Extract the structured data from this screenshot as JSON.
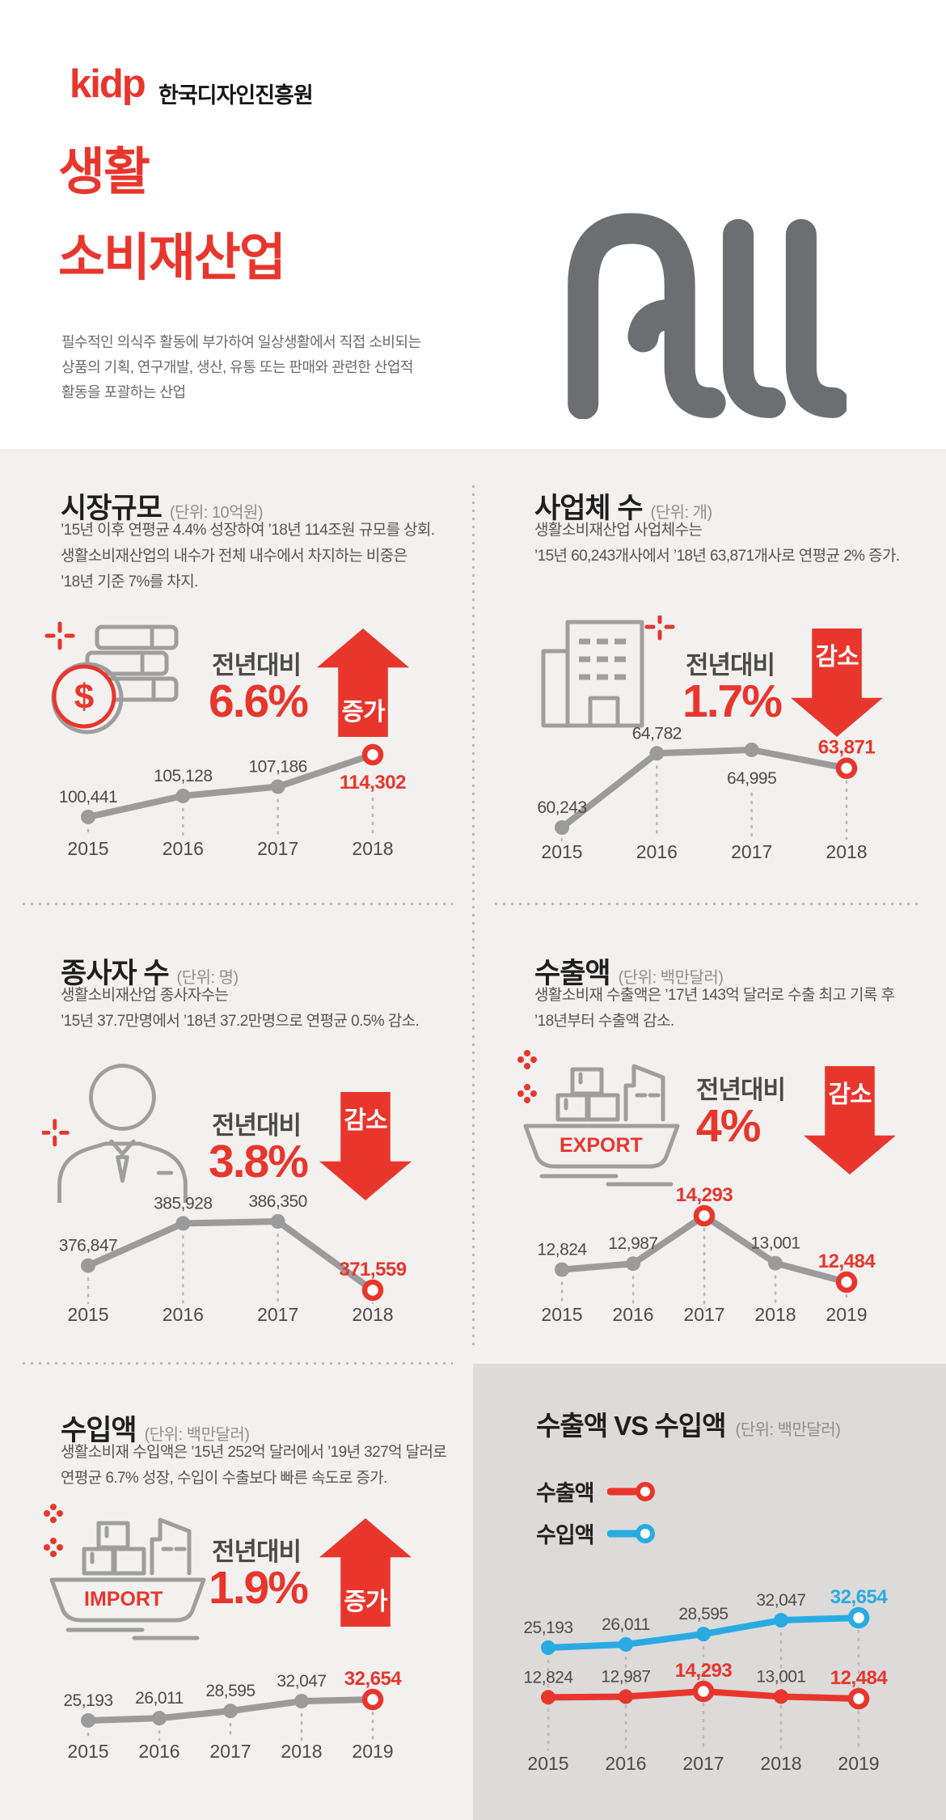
{
  "header": {
    "logo": "kidp",
    "org": "한국디자인진흥원",
    "title": "생활\n소비재산업",
    "description": "필수적인 의식주 활동에 부가하여 일상생활에서 직접 소비되는\n상품의 기획, 연구개발, 생산, 유통 또는 판매와 관련한 산업적\n활동을 포괄하는 산업",
    "big_word": "All"
  },
  "colors": {
    "red": "#e8362d",
    "blue": "#29abe2",
    "gray_line": "#9b9b9b",
    "background": "#f2f1f0",
    "panel_gray": "#dcdbda"
  },
  "icons": {
    "dollar_sign": "$"
  },
  "sections": {
    "market": {
      "title": "시장규모",
      "unit": "(단위: 10억원)",
      "body": "’15년 이후 연평균 4.4% 성장하여 ’18년 114조원 규모를 상회.\n생활소비재산업의 내수가 전체 내수에서 차지하는 비중은\n’18년 기준 7%를 차지.",
      "compare_label": "전년대비",
      "percent": "6.6%",
      "direction_label": "증가"
    },
    "business": {
      "title": "사업체 수",
      "unit": "(단위: 개)",
      "body": "생활소비재산업 사업체수는\n’15년 60,243개사에서 ’18년 63,871개사로 연평균 2% 증가.",
      "compare_label": "전년대비",
      "percent": "1.7%",
      "direction_label": "감소"
    },
    "workers": {
      "title": "종사자 수",
      "unit": "(단위: 명)",
      "body": "생활소비재산업 종사자수는\n’15년 37.7만명에서 ’18년 37.2만명으로 연평균 0.5% 감소.",
      "compare_label": "전년대비",
      "percent": "3.8%",
      "direction_label": "감소"
    },
    "exports": {
      "title": "수출액",
      "unit": "(단위: 백만달러)",
      "body": "생활소비재 수출액은 ’17년 143억 달러로 수출 최고 기록 후\n’18년부터 수출액 감소.",
      "compare_label": "전년대비",
      "percent": "4%",
      "direction_label": "감소",
      "icon_label": "EXPORT"
    },
    "imports": {
      "title": "수입액",
      "unit": "(단위: 백만달러)",
      "body": "생활소비재 수입액은 ’15년 252억 달러에서 ’19년 327억 달러로\n연평균 6.7% 성장, 수입이 수출보다 빠른 속도로 증가.",
      "compare_label": "전년대비",
      "percent": "1.9%",
      "direction_label": "증가",
      "icon_label": "IMPORT"
    },
    "vs": {
      "title": "수출액 VS 수입액",
      "unit": "(단위: 백만달러)",
      "legend": [
        {
          "label": "수출액",
          "color": "#e8362d"
        },
        {
          "label": "수입액",
          "color": "#29abe2"
        }
      ]
    }
  },
  "chart_data": [
    {
      "type": "line",
      "title": "시장규모",
      "ylabel": "10억원",
      "categories": [
        "2015",
        "2016",
        "2017",
        "2018"
      ],
      "values": [
        100441,
        105128,
        107186,
        114302
      ],
      "highlight_indices": [
        3
      ],
      "labels_below": [
        3
      ],
      "line_color": "#9b9b9b",
      "highlight_color": "#e8362d",
      "grid": false
    },
    {
      "type": "line",
      "title": "사업체 수",
      "ylabel": "개",
      "categories": [
        "2015",
        "2016",
        "2017",
        "2018"
      ],
      "values": [
        60243,
        64782,
        64995,
        63871
      ],
      "highlight_indices": [
        3
      ],
      "labels_below": [
        2
      ],
      "line_color": "#9b9b9b",
      "highlight_color": "#e8362d",
      "grid": false
    },
    {
      "type": "line",
      "title": "종사자 수",
      "ylabel": "명",
      "categories": [
        "2015",
        "2016",
        "2017",
        "2018"
      ],
      "values": [
        376847,
        385928,
        386350,
        371559
      ],
      "highlight_indices": [
        3
      ],
      "labels_below": [],
      "line_color": "#9b9b9b",
      "highlight_color": "#e8362d",
      "grid": false
    },
    {
      "type": "line",
      "title": "수출액",
      "ylabel": "백만달러",
      "categories": [
        "2015",
        "2016",
        "2017",
        "2018",
        "2019"
      ],
      "values": [
        12824,
        12987,
        14293,
        13001,
        12484
      ],
      "highlight_indices": [
        2,
        4
      ],
      "labels_below": [],
      "line_color": "#9b9b9b",
      "highlight_color": "#e8362d",
      "grid": false
    },
    {
      "type": "line",
      "title": "수입액",
      "ylabel": "백만달러",
      "categories": [
        "2015",
        "2016",
        "2017",
        "2018",
        "2019"
      ],
      "values": [
        25193,
        26011,
        28595,
        32047,
        32654
      ],
      "highlight_indices": [
        4
      ],
      "labels_below": [],
      "line_color": "#9b9b9b",
      "highlight_color": "#e8362d",
      "grid": false
    },
    {
      "type": "line",
      "title": "수출액 VS 수입액",
      "ylabel": "백만달러",
      "legend_position": "top-left",
      "categories": [
        "2015",
        "2016",
        "2017",
        "2018",
        "2019"
      ],
      "series": [
        {
          "name": "수출액",
          "color": "#e8362d",
          "values": [
            12824,
            12987,
            14293,
            13001,
            12484
          ],
          "highlight_indices": [
            2,
            4
          ],
          "labels_below": []
        },
        {
          "name": "수입액",
          "color": "#29abe2",
          "values": [
            25193,
            26011,
            28595,
            32047,
            32654
          ],
          "highlight_indices": [
            4
          ],
          "labels_below": []
        }
      ],
      "grid": false
    }
  ]
}
